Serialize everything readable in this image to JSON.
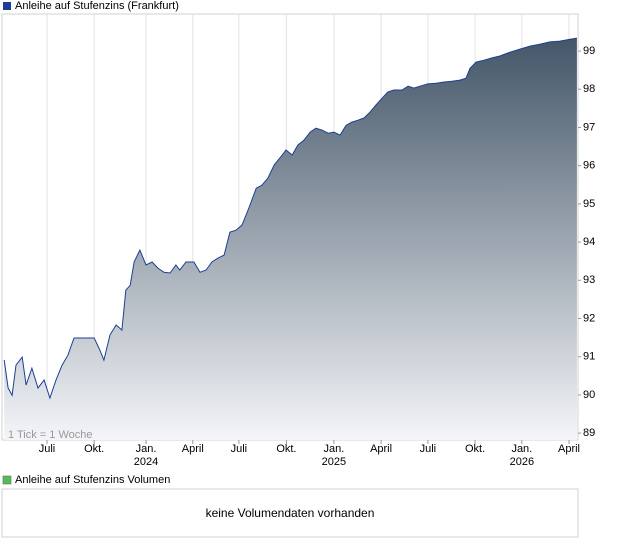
{
  "chart_data": {
    "type": "area",
    "legend": "Anleihe auf Stufenzins (Frankfurt)",
    "annotation": "1 Tick = 1 Woche",
    "volume_legend": "Anleihe auf Stufenzins Volumen",
    "volume_message": "keine Volumendaten vorhanden",
    "line_color": "#1c3f94",
    "fill_top_color": "#435668",
    "fill_bottom_color": "#f4f5f8",
    "legend_color": "#1c3f94",
    "volume_legend_color": "#5cb85c",
    "grid": true,
    "xlim": [
      0,
      160
    ],
    "ylim": [
      88.82,
      99.97
    ],
    "yticks": [
      89,
      90,
      91,
      92,
      93,
      94,
      95,
      96,
      97,
      98,
      99
    ],
    "xticks": [
      {
        "value": 12.5,
        "label": "Juli"
      },
      {
        "value": 25.6,
        "label": "Okt."
      },
      {
        "value": 40,
        "label": "Jan."
      },
      {
        "value": 53,
        "label": "April"
      },
      {
        "value": 65.8,
        "label": "Juli"
      },
      {
        "value": 79,
        "label": "Okt."
      },
      {
        "value": 92.2,
        "label": "Jan."
      },
      {
        "value": 105.3,
        "label": "April"
      },
      {
        "value": 118.3,
        "label": "Juli"
      },
      {
        "value": 131.4,
        "label": "Okt."
      },
      {
        "value": 144.4,
        "label": "Jan."
      },
      {
        "value": 157.5,
        "label": "April"
      }
    ],
    "x_year_labels": [
      {
        "value": 40,
        "label": "2024"
      },
      {
        "value": 92.2,
        "label": "2025"
      },
      {
        "value": 144.4,
        "label": "2026"
      }
    ],
    "x": [
      0.6,
      1.7,
      2.8,
      3.9,
      5.6,
      6.7,
      8.3,
      10.0,
      11.7,
      13.3,
      15.0,
      16.7,
      18.3,
      20.0,
      21.7,
      23.3,
      25.6,
      27.2,
      28.3,
      30.0,
      31.7,
      33.3,
      34.4,
      35.6,
      36.7,
      38.3,
      40.0,
      41.7,
      43.3,
      45.0,
      46.7,
      48.3,
      49.4,
      51.1,
      53.3,
      55.0,
      56.7,
      58.3,
      60.0,
      61.7,
      63.3,
      65.0,
      66.7,
      68.9,
      70.6,
      72.2,
      73.9,
      75.6,
      77.2,
      78.9,
      80.6,
      82.2,
      83.9,
      85.6,
      87.2,
      88.9,
      90.6,
      92.2,
      93.9,
      95.6,
      97.2,
      98.9,
      100.6,
      102.2,
      103.9,
      105.6,
      107.2,
      108.9,
      111.1,
      112.8,
      114.4,
      116.1,
      118.3,
      120.6,
      122.8,
      125.0,
      127.2,
      128.9,
      130.0,
      131.7,
      133.9,
      136.1,
      138.3,
      141.1,
      143.9,
      146.7,
      149.4,
      152.2,
      155.0,
      157.8,
      159.7
    ],
    "values": [
      90.91,
      90.18,
      89.99,
      90.78,
      90.99,
      90.26,
      90.7,
      90.18,
      90.39,
      89.92,
      90.39,
      90.78,
      91.04,
      91.49,
      91.49,
      91.49,
      91.49,
      91.17,
      90.91,
      91.57,
      91.83,
      91.7,
      92.74,
      92.87,
      93.48,
      93.79,
      93.4,
      93.48,
      93.32,
      93.21,
      93.19,
      93.4,
      93.27,
      93.48,
      93.48,
      93.21,
      93.27,
      93.48,
      93.58,
      93.66,
      94.26,
      94.31,
      94.45,
      94.97,
      95.41,
      95.49,
      95.68,
      96.02,
      96.2,
      96.41,
      96.28,
      96.54,
      96.67,
      96.88,
      96.98,
      96.93,
      96.85,
      96.88,
      96.8,
      97.06,
      97.14,
      97.19,
      97.25,
      97.4,
      97.59,
      97.77,
      97.93,
      97.98,
      97.98,
      98.08,
      98.03,
      98.08,
      98.14,
      98.16,
      98.19,
      98.21,
      98.24,
      98.29,
      98.55,
      98.71,
      98.76,
      98.82,
      98.87,
      98.97,
      99.05,
      99.13,
      99.18,
      99.24,
      99.26,
      99.31,
      99.34
    ]
  }
}
